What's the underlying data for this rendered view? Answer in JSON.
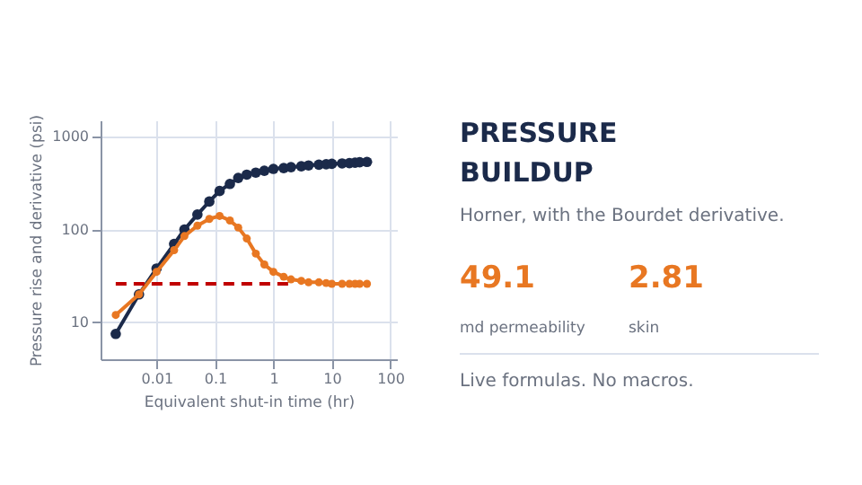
{
  "chart_data": [
    {
      "type": "line",
      "xlabel": "Equivalent shut-in time  (hr)",
      "ylabel": "Pressure rise and derivative  (psi)",
      "log": "xy",
      "xlim": [
        0.0011,
        130
      ],
      "ylim": [
        4,
        1500
      ],
      "xticks": [
        0.01,
        0.1,
        1,
        10,
        100
      ],
      "yticks": [
        10,
        100,
        1000
      ],
      "grid": true,
      "marker": "circle",
      "x": [
        0.002,
        0.005,
        0.01,
        0.02,
        0.03,
        0.05,
        0.08,
        0.12,
        0.18,
        0.25,
        0.35,
        0.5,
        0.7,
        1,
        1.5,
        2,
        3,
        4,
        6,
        8,
        10,
        15,
        20,
        25,
        30,
        40
      ],
      "series": [
        {
          "color": "#1b2a4a",
          "values": [
            7.5,
            20,
            38,
            70,
            100,
            145,
            200,
            260,
            310,
            360,
            390,
            410,
            430,
            450,
            460,
            470,
            480,
            490,
            500,
            505,
            510,
            515,
            520,
            525,
            530,
            535
          ]
        },
        {
          "color": "#e87722",
          "values": [
            12,
            20,
            35,
            60,
            85,
            110,
            130,
            140,
            125,
            105,
            80,
            55,
            42,
            35,
            31,
            29,
            28,
            27,
            27,
            26.5,
            26,
            26,
            26,
            26,
            26,
            26
          ]
        },
        {
          "color": "#c00000",
          "x": [
            0.002,
            2
          ],
          "values": [
            26,
            26
          ],
          "marker": "none",
          "line_style": "dashed"
        }
      ]
    },
    {
      "type": "other",
      "title": "PRESSURE BUILDUP",
      "subtitle": "Horner, with the Bourdet derivative.",
      "annotations": [
        "49.1",
        "md permeability",
        "2.81",
        "skin",
        "Live formulas. No macros."
      ]
    }
  ]
}
